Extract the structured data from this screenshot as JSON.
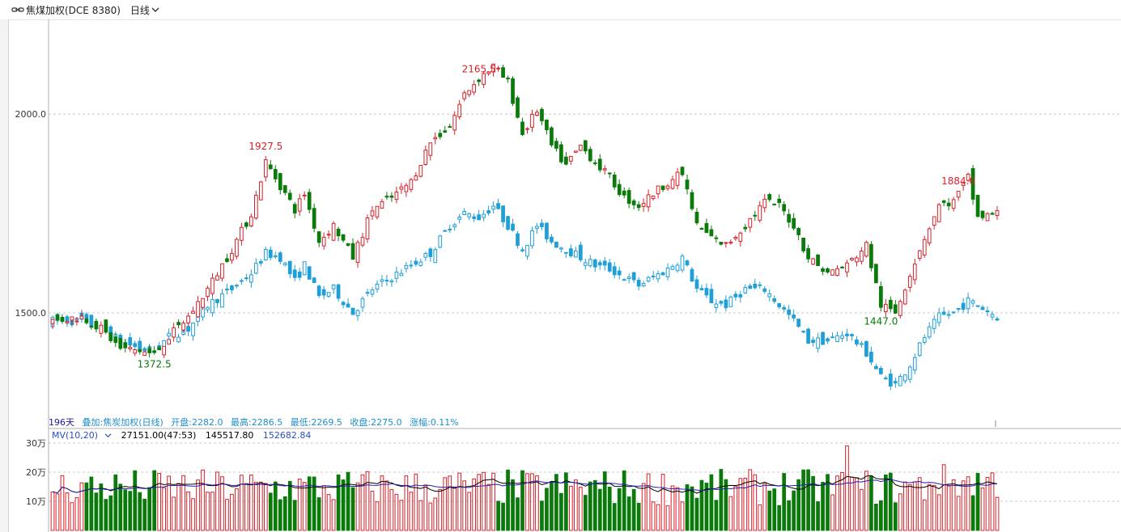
{
  "header": {
    "symbol": "焦煤加权(DCE 8380)",
    "period": "日线",
    "link_icon": "chain-link-icon"
  },
  "info_bar": {
    "days": "196天",
    "overlay": "叠加:焦炭加权(日线)",
    "open": "开盘:2282.0",
    "high": "最高:2286.5",
    "low": "最低:2269.5",
    "close": "收盘:2275.0",
    "change": "涨幅:0.11%"
  },
  "volume_panel": {
    "indicator": "MV(10,20)",
    "value1": "27151.00(47:53)",
    "value2": "145517.80",
    "value3": "152682.84",
    "y_ticks": [
      "30万",
      "20万",
      "10万"
    ]
  },
  "colors": {
    "up": "#d8212a",
    "down": "#0a7a0a",
    "overlay": "#1e9fd8",
    "grid": "#c8c8c8",
    "ma10": "#000000",
    "ma20": "#2222aa",
    "accent_label": "#1a6bb8"
  },
  "chart_data": {
    "type": "candlestick",
    "main_series": "焦煤加权(DCE 8380)",
    "overlay_series": "焦炭加权(日线)",
    "y_ticks": [
      2000.0,
      1500.0
    ],
    "ylim": [
      1250,
      2230
    ],
    "annotations": [
      {
        "text": "2165.5",
        "bar": 88,
        "kind": "high"
      },
      {
        "text": "1927.5",
        "bar": 44,
        "kind": "high"
      },
      {
        "text": "1884.0",
        "bar": 187,
        "kind": "high"
      },
      {
        "text": "1372.5",
        "bar": 21,
        "kind": "low"
      },
      {
        "text": "1447.0",
        "bar": 171,
        "kind": "low"
      }
    ],
    "anchors_main": [
      [
        0,
        1480
      ],
      [
        6,
        1490
      ],
      [
        10,
        1460
      ],
      [
        14,
        1410
      ],
      [
        18,
        1405
      ],
      [
        21,
        1395
      ],
      [
        24,
        1440
      ],
      [
        28,
        1490
      ],
      [
        32,
        1560
      ],
      [
        37,
        1660
      ],
      [
        41,
        1750
      ],
      [
        44,
        1880
      ],
      [
        47,
        1820
      ],
      [
        50,
        1760
      ],
      [
        52,
        1800
      ],
      [
        55,
        1680
      ],
      [
        58,
        1720
      ],
      [
        62,
        1640
      ],
      [
        66,
        1760
      ],
      [
        70,
        1790
      ],
      [
        74,
        1830
      ],
      [
        78,
        1930
      ],
      [
        82,
        1970
      ],
      [
        85,
        2050
      ],
      [
        88,
        2090
      ],
      [
        91,
        2120
      ],
      [
        94,
        2080
      ],
      [
        97,
        1950
      ],
      [
        100,
        2010
      ],
      [
        103,
        1920
      ],
      [
        106,
        1870
      ],
      [
        109,
        1920
      ],
      [
        112,
        1880
      ],
      [
        115,
        1840
      ],
      [
        118,
        1790
      ],
      [
        121,
        1770
      ],
      [
        124,
        1800
      ],
      [
        127,
        1830
      ],
      [
        130,
        1850
      ],
      [
        133,
        1720
      ],
      [
        136,
        1690
      ],
      [
        139,
        1670
      ],
      [
        143,
        1720
      ],
      [
        147,
        1780
      ],
      [
        150,
        1770
      ],
      [
        153,
        1720
      ],
      [
        156,
        1640
      ],
      [
        160,
        1600
      ],
      [
        164,
        1620
      ],
      [
        168,
        1670
      ],
      [
        171,
        1520
      ],
      [
        174,
        1500
      ],
      [
        177,
        1600
      ],
      [
        180,
        1690
      ],
      [
        183,
        1770
      ],
      [
        186,
        1780
      ],
      [
        189,
        1840
      ],
      [
        191,
        1740
      ],
      [
        195,
        1750
      ]
    ],
    "anchors_overlay": [
      [
        0,
        1480
      ],
      [
        6,
        1480
      ],
      [
        10,
        1460
      ],
      [
        14,
        1430
      ],
      [
        18,
        1410
      ],
      [
        21,
        1405
      ],
      [
        24,
        1440
      ],
      [
        28,
        1460
      ],
      [
        32,
        1520
      ],
      [
        37,
        1560
      ],
      [
        41,
        1600
      ],
      [
        44,
        1650
      ],
      [
        47,
        1640
      ],
      [
        50,
        1580
      ],
      [
        52,
        1620
      ],
      [
        55,
        1540
      ],
      [
        58,
        1560
      ],
      [
        62,
        1500
      ],
      [
        66,
        1560
      ],
      [
        70,
        1590
      ],
      [
        74,
        1620
      ],
      [
        78,
        1650
      ],
      [
        82,
        1720
      ],
      [
        85,
        1750
      ],
      [
        88,
        1740
      ],
      [
        91,
        1770
      ],
      [
        94,
        1720
      ],
      [
        97,
        1660
      ],
      [
        100,
        1720
      ],
      [
        103,
        1680
      ],
      [
        106,
        1660
      ],
      [
        109,
        1640
      ],
      [
        112,
        1620
      ],
      [
        115,
        1610
      ],
      [
        118,
        1590
      ],
      [
        121,
        1570
      ],
      [
        124,
        1590
      ],
      [
        127,
        1610
      ],
      [
        130,
        1640
      ],
      [
        133,
        1560
      ],
      [
        136,
        1530
      ],
      [
        139,
        1520
      ],
      [
        143,
        1560
      ],
      [
        147,
        1560
      ],
      [
        150,
        1520
      ],
      [
        153,
        1480
      ],
      [
        156,
        1430
      ],
      [
        160,
        1430
      ],
      [
        164,
        1450
      ],
      [
        168,
        1400
      ],
      [
        171,
        1340
      ],
      [
        174,
        1320
      ],
      [
        177,
        1370
      ],
      [
        180,
        1440
      ],
      [
        183,
        1490
      ],
      [
        186,
        1500
      ],
      [
        189,
        1530
      ],
      [
        191,
        1520
      ],
      [
        195,
        1490
      ]
    ],
    "volume_base": 140000,
    "volume_max": 300000
  }
}
